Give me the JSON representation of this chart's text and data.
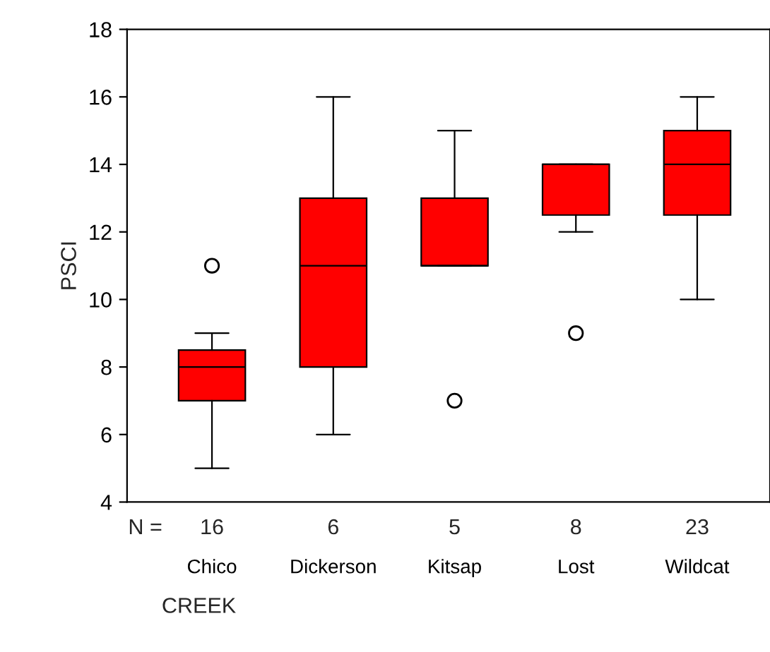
{
  "chart_data": {
    "type": "box",
    "xlabel": "CREEK",
    "ylabel": "PSCI",
    "categories": [
      "Chico",
      "Dickerson",
      "Kitsap",
      "Lost",
      "Wildcat"
    ],
    "boxes": [
      {
        "low": 5,
        "q1": 7,
        "median": 8,
        "q3": 8.5,
        "high": 9,
        "outliers": [
          11
        ]
      },
      {
        "low": 6,
        "q1": 8,
        "median": 11,
        "q3": 13,
        "high": 16
      },
      {
        "low": 11,
        "q1": 11,
        "median": 11,
        "q3": 13,
        "high": 15,
        "outliers": [
          7
        ]
      },
      {
        "low": 12,
        "q1": 12.5,
        "median": 14,
        "q3": 14,
        "high": 14,
        "outliers": [
          9
        ]
      },
      {
        "low": 10,
        "q1": 12.5,
        "median": 14,
        "q3": 15,
        "high": 16
      }
    ],
    "color": "#ff0000",
    "ylim": [
      4,
      18
    ],
    "yticks": [
      4,
      6,
      8,
      10,
      12,
      14,
      16,
      18
    ],
    "grid": false,
    "legend": false,
    "annotations": [
      "N =",
      "16",
      "6",
      "5",
      "8",
      "23"
    ]
  }
}
